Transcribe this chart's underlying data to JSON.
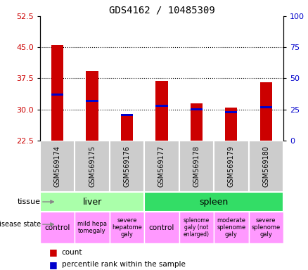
{
  "title": "GDS4162 / 10485309",
  "samples": [
    "GSM569174",
    "GSM569175",
    "GSM569176",
    "GSM569177",
    "GSM569178",
    "GSM569179",
    "GSM569180"
  ],
  "count_values": [
    45.5,
    39.2,
    28.8,
    36.8,
    31.5,
    30.5,
    36.5
  ],
  "percentile_values": [
    33.5,
    32.0,
    28.7,
    30.8,
    30.0,
    29.4,
    30.5
  ],
  "bar_bottom": 22.5,
  "ylim": [
    22.5,
    52.5
  ],
  "yticks_left": [
    22.5,
    30.0,
    37.5,
    45.0,
    52.5
  ],
  "yticks_right": [
    0,
    25,
    50,
    75,
    100
  ],
  "tissue_groups": [
    {
      "label": "liver",
      "start": 0,
      "end": 3,
      "color": "#AAFFAA"
    },
    {
      "label": "spleen",
      "start": 3,
      "end": 7,
      "color": "#33DD66"
    }
  ],
  "disease_labels": [
    {
      "label": "control",
      "fontsize": 7.5
    },
    {
      "label": "mild hepa\ntomegaly",
      "fontsize": 6
    },
    {
      "label": "severe\nhepatome\ngaly",
      "fontsize": 6
    },
    {
      "label": "control",
      "fontsize": 7.5
    },
    {
      "label": "splenome\ngaly (not\nenlarged)",
      "fontsize": 5.5
    },
    {
      "label": "moderate\nsplenome\ngaly",
      "fontsize": 6
    },
    {
      "label": "severe\nsplenome\ngaly",
      "fontsize": 6
    }
  ],
  "disease_color": "#FF99FF",
  "count_color": "#CC0000",
  "percentile_color": "#0000CC",
  "bar_width": 0.35,
  "blue_bar_height": 0.5,
  "label_area_color": "#CCCCCC",
  "grid_color": "black",
  "grid_linestyle": ":"
}
